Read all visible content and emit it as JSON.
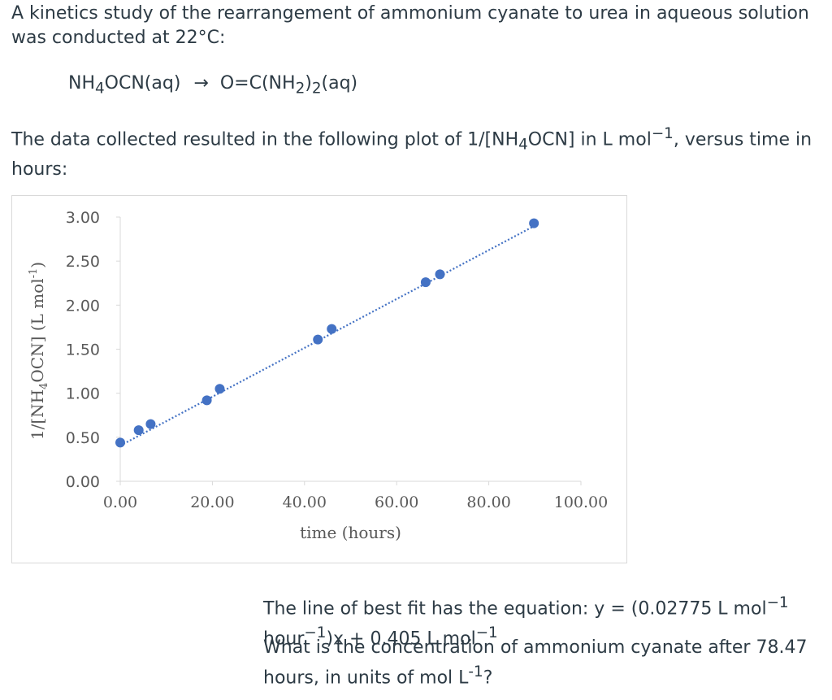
{
  "intro": {
    "text": "A kinetics study of the rearrangement of ammonium cyanate to urea in aqueous solution was conducted at 22°C:"
  },
  "reaction": {
    "reactant": [
      "NH",
      "4",
      "OCN(aq)"
    ],
    "arrow": "→",
    "product": [
      "O=C(NH",
      "2",
      ")",
      "2",
      "(aq)"
    ]
  },
  "plot_description": {
    "before": "The data collected resulted in the following plot of 1/[NH",
    "sub": "4",
    "middle": "OCN] in L mol",
    "sup": "−1",
    "after": ", versus time in hours:"
  },
  "best_fit": {
    "part1": "The line of best fit has the equation: y = (0.02775 L mol",
    "sup1": "−1",
    "part2": " hour",
    "sup2": "−1",
    "part3": ")x + 0.405 L mol",
    "sup3": "−1"
  },
  "question": {
    "text": "What is the concentration of ammonium cyanate after 78.47 hours, in units of mol L",
    "sup": "-1",
    "end": "?"
  },
  "chart_data": {
    "type": "scatter",
    "xlabel": "time (hours)",
    "ylabel": "1/[NH4OCN] (L mol-1)",
    "ylabel_parts": {
      "a": "1/[NH",
      "sub": "4",
      "b": "OCN]  (L mol",
      "sup": "-1",
      "c": ")"
    },
    "xlim": [
      0,
      100
    ],
    "ylim": [
      0,
      3
    ],
    "x_ticks": [
      "0.00",
      "20.00",
      "40.00",
      "60.00",
      "80.00",
      "100.00"
    ],
    "y_ticks": [
      "0.00",
      "0.50",
      "1.00",
      "1.50",
      "2.00",
      "2.50",
      "3.00"
    ],
    "points": [
      {
        "x": 0.0,
        "y": 0.44
      },
      {
        "x": 4.0,
        "y": 0.58
      },
      {
        "x": 6.6,
        "y": 0.65
      },
      {
        "x": 18.8,
        "y": 0.92
      },
      {
        "x": 21.6,
        "y": 1.05
      },
      {
        "x": 42.9,
        "y": 1.61
      },
      {
        "x": 45.9,
        "y": 1.73
      },
      {
        "x": 66.3,
        "y": 2.26
      },
      {
        "x": 69.4,
        "y": 2.35
      },
      {
        "x": 89.8,
        "y": 2.93
      }
    ],
    "trendline": {
      "slope": 0.02775,
      "intercept": 0.405,
      "style": "dotted"
    },
    "marker_color": "#4472c4",
    "axis_color": "#d9d9d9"
  }
}
